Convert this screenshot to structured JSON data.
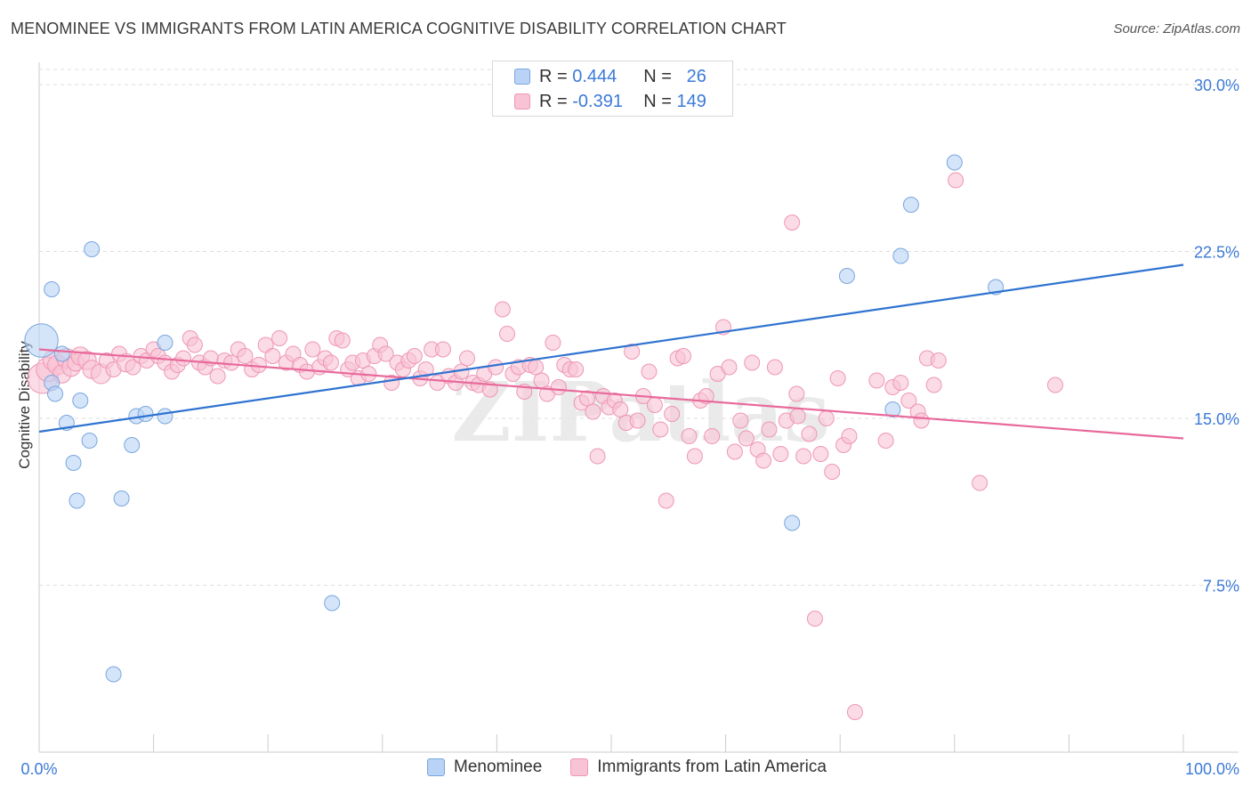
{
  "title": "MENOMINEE VS IMMIGRANTS FROM LATIN AMERICA COGNITIVE DISABILITY CORRELATION CHART",
  "source": "Source: ZipAtlas.com",
  "watermark": "ZIPatlas",
  "legend_stats": [
    {
      "r_label": "R =",
      "r_value": "0.444",
      "n_label": "N =",
      "n_value": "26"
    },
    {
      "r_label": "R =",
      "r_value": "-0.391",
      "n_label": "N =",
      "n_value": "149"
    }
  ],
  "colors": {
    "blue_fill": "#b8d3f5",
    "blue_stroke": "#7aa6de",
    "blue_line": "#2f73d0",
    "pink_fill": "#f8c3d4",
    "pink_stroke": "#ee97b4",
    "pink_line": "#e8699a",
    "tick_label": "#3b7ad8",
    "grid": "#dddddd"
  },
  "chart_data": {
    "type": "scatter",
    "title": "MENOMINEE VS IMMIGRANTS FROM LATIN AMERICA COGNITIVE DISABILITY CORRELATION CHART",
    "xlabel": "",
    "ylabel": "Cognitive Disability",
    "xlim": [
      0,
      100
    ],
    "ylim": [
      0,
      31
    ],
    "x_tick_labels": [
      "0.0%",
      "100.0%"
    ],
    "y_ticks": [
      7.5,
      15.0,
      22.5,
      30.0
    ],
    "y_tick_labels": [
      "7.5%",
      "15.0%",
      "22.5%",
      "30.0%"
    ],
    "grid": true,
    "legend_position": "bottom",
    "series": [
      {
        "name": "Menominee",
        "r": 0.444,
        "n": 26,
        "trend": [
          [
            0,
            14.4
          ],
          [
            100,
            21.9
          ]
        ],
        "points": [
          [
            0.2,
            18.5,
            2.2
          ],
          [
            1.1,
            16.6,
            1
          ],
          [
            1.1,
            20.8,
            1
          ],
          [
            1.4,
            16.1,
            1
          ],
          [
            2.0,
            17.9,
            1
          ],
          [
            2.4,
            14.8,
            1
          ],
          [
            3.0,
            13.0,
            1
          ],
          [
            3.3,
            11.3,
            1
          ],
          [
            3.6,
            15.8,
            1
          ],
          [
            4.4,
            14.0,
            1
          ],
          [
            4.6,
            22.6,
            1
          ],
          [
            7.2,
            11.4,
            1
          ],
          [
            8.1,
            13.8,
            1
          ],
          [
            8.5,
            15.1,
            1
          ],
          [
            9.3,
            15.2,
            1
          ],
          [
            11.0,
            15.1,
            1
          ],
          [
            11.0,
            18.4,
            1
          ],
          [
            25.6,
            6.7,
            1
          ],
          [
            65.8,
            10.3,
            1
          ],
          [
            70.6,
            21.4,
            1
          ],
          [
            74.6,
            15.4,
            1
          ],
          [
            75.3,
            22.3,
            1
          ],
          [
            76.2,
            24.6,
            1
          ],
          [
            80.0,
            26.5,
            1
          ],
          [
            83.6,
            20.9,
            1
          ],
          [
            6.5,
            3.5,
            1
          ]
        ]
      },
      {
        "name": "Immigrants from Latin America",
        "r": -0.391,
        "n": 149,
        "trend": [
          [
            0,
            18.1
          ],
          [
            100,
            14.1
          ]
        ],
        "points": [
          [
            0.3,
            16.8,
            2.0
          ],
          [
            0.8,
            17.2,
            1.6
          ],
          [
            1.2,
            17.6,
            1.3
          ],
          [
            1.6,
            17.4,
            1.3
          ],
          [
            2.0,
            17.0,
            1.2
          ],
          [
            2.4,
            17.7,
            1.3
          ],
          [
            2.8,
            17.3,
            1.2
          ],
          [
            3.2,
            17.5,
            1.1
          ],
          [
            3.6,
            17.8,
            1.2
          ],
          [
            4.2,
            17.6,
            1.2
          ],
          [
            4.6,
            17.2,
            1.2
          ],
          [
            5.4,
            17.0,
            1.3
          ],
          [
            5.9,
            17.6,
            1
          ],
          [
            6.5,
            17.2,
            1
          ],
          [
            7.0,
            17.9,
            1
          ],
          [
            7.6,
            17.5,
            1.2
          ],
          [
            8.2,
            17.3,
            1
          ],
          [
            8.9,
            17.8,
            1
          ],
          [
            9.4,
            17.6,
            1
          ],
          [
            10.0,
            18.1,
            1
          ],
          [
            10.4,
            17.8,
            1
          ],
          [
            11.0,
            17.5,
            1
          ],
          [
            11.6,
            17.1,
            1
          ],
          [
            12.1,
            17.4,
            1
          ],
          [
            12.6,
            17.7,
            1
          ],
          [
            13.2,
            18.6,
            1
          ],
          [
            13.6,
            18.3,
            1
          ],
          [
            14.0,
            17.5,
            1
          ],
          [
            14.5,
            17.3,
            1
          ],
          [
            15.0,
            17.7,
            1
          ],
          [
            15.6,
            16.9,
            1
          ],
          [
            16.2,
            17.6,
            1
          ],
          [
            16.8,
            17.5,
            1
          ],
          [
            17.4,
            18.1,
            1
          ],
          [
            18.0,
            17.8,
            1
          ],
          [
            18.6,
            17.2,
            1
          ],
          [
            19.2,
            17.4,
            1
          ],
          [
            19.8,
            18.3,
            1
          ],
          [
            20.4,
            17.8,
            1
          ],
          [
            21.0,
            18.6,
            1
          ],
          [
            21.6,
            17.5,
            1
          ],
          [
            22.2,
            17.9,
            1
          ],
          [
            22.8,
            17.4,
            1
          ],
          [
            23.4,
            17.1,
            1
          ],
          [
            23.9,
            18.1,
            1
          ],
          [
            24.5,
            17.3,
            1
          ],
          [
            25.0,
            17.7,
            1
          ],
          [
            25.5,
            17.5,
            1
          ],
          [
            26.0,
            18.6,
            1
          ],
          [
            26.5,
            18.5,
            1
          ],
          [
            27.0,
            17.2,
            1
          ],
          [
            27.4,
            17.5,
            1
          ],
          [
            27.9,
            16.8,
            1
          ],
          [
            28.3,
            17.6,
            1
          ],
          [
            28.8,
            17.0,
            1
          ],
          [
            29.3,
            17.8,
            1
          ],
          [
            29.8,
            18.3,
            1
          ],
          [
            30.3,
            17.9,
            1
          ],
          [
            30.8,
            16.6,
            1
          ],
          [
            31.3,
            17.5,
            1
          ],
          [
            31.8,
            17.2,
            1
          ],
          [
            32.3,
            17.6,
            1
          ],
          [
            32.8,
            17.8,
            1
          ],
          [
            33.3,
            16.8,
            1
          ],
          [
            33.8,
            17.2,
            1
          ],
          [
            34.3,
            18.1,
            1
          ],
          [
            34.8,
            16.6,
            1
          ],
          [
            35.3,
            18.1,
            1
          ],
          [
            35.8,
            16.9,
            1
          ],
          [
            36.4,
            16.6,
            1
          ],
          [
            36.9,
            17.1,
            1
          ],
          [
            37.4,
            17.7,
            1
          ],
          [
            37.9,
            16.6,
            1
          ],
          [
            38.4,
            16.5,
            1
          ],
          [
            38.9,
            17.0,
            1
          ],
          [
            39.4,
            16.3,
            1
          ],
          [
            39.9,
            17.3,
            1
          ],
          [
            40.5,
            19.9,
            1
          ],
          [
            40.9,
            18.8,
            1
          ],
          [
            41.4,
            17.0,
            1
          ],
          [
            41.9,
            17.3,
            1
          ],
          [
            42.4,
            16.2,
            1
          ],
          [
            42.9,
            17.4,
            1
          ],
          [
            43.4,
            17.3,
            1
          ],
          [
            43.9,
            16.7,
            1
          ],
          [
            44.4,
            16.1,
            1
          ],
          [
            44.9,
            18.4,
            1
          ],
          [
            45.4,
            16.4,
            1
          ],
          [
            45.9,
            17.4,
            1
          ],
          [
            46.4,
            17.2,
            1
          ],
          [
            46.9,
            17.2,
            1
          ],
          [
            47.4,
            15.7,
            1
          ],
          [
            47.9,
            15.9,
            1
          ],
          [
            48.4,
            15.3,
            1
          ],
          [
            48.8,
            13.3,
            1
          ],
          [
            49.3,
            16.0,
            1
          ],
          [
            49.8,
            15.5,
            1
          ],
          [
            50.3,
            15.8,
            1
          ],
          [
            50.8,
            15.4,
            1
          ],
          [
            51.3,
            14.8,
            1
          ],
          [
            51.8,
            18.0,
            1
          ],
          [
            52.3,
            14.9,
            1
          ],
          [
            52.8,
            16.0,
            1
          ],
          [
            53.3,
            17.1,
            1
          ],
          [
            53.8,
            15.6,
            1
          ],
          [
            54.3,
            14.5,
            1
          ],
          [
            54.8,
            11.3,
            1
          ],
          [
            55.3,
            15.2,
            1
          ],
          [
            55.8,
            17.7,
            1
          ],
          [
            56.3,
            17.8,
            1
          ],
          [
            56.8,
            14.2,
            1
          ],
          [
            57.3,
            13.3,
            1
          ],
          [
            57.8,
            15.8,
            1
          ],
          [
            58.3,
            16.0,
            1
          ],
          [
            58.8,
            14.2,
            1
          ],
          [
            59.3,
            17.0,
            1
          ],
          [
            59.8,
            19.1,
            1
          ],
          [
            60.3,
            17.3,
            1
          ],
          [
            60.8,
            13.5,
            1
          ],
          [
            61.3,
            14.9,
            1
          ],
          [
            61.8,
            14.1,
            1
          ],
          [
            62.3,
            17.5,
            1
          ],
          [
            62.8,
            13.6,
            1
          ],
          [
            63.3,
            13.1,
            1
          ],
          [
            63.8,
            14.5,
            1
          ],
          [
            64.3,
            17.3,
            1
          ],
          [
            64.8,
            13.4,
            1
          ],
          [
            65.3,
            14.9,
            1
          ],
          [
            65.8,
            23.8,
            1
          ],
          [
            66.3,
            15.1,
            1
          ],
          [
            66.8,
            13.3,
            1
          ],
          [
            67.3,
            14.3,
            1
          ],
          [
            67.8,
            6.0,
            1
          ],
          [
            68.3,
            13.4,
            1
          ],
          [
            68.8,
            15.0,
            1
          ],
          [
            69.3,
            12.6,
            1
          ],
          [
            69.8,
            16.8,
            1
          ],
          [
            70.3,
            13.8,
            1
          ],
          [
            70.8,
            14.2,
            1
          ],
          [
            71.3,
            1.8,
            1
          ],
          [
            73.2,
            16.7,
            1
          ],
          [
            74.0,
            14.0,
            1
          ],
          [
            74.6,
            16.4,
            1
          ],
          [
            75.3,
            16.6,
            1
          ],
          [
            76.0,
            15.8,
            1
          ],
          [
            76.8,
            15.3,
            1
          ],
          [
            77.6,
            17.7,
            1
          ],
          [
            78.2,
            16.5,
            1
          ],
          [
            80.1,
            25.7,
            1
          ],
          [
            82.2,
            12.1,
            1
          ],
          [
            78.6,
            17.6,
            1
          ],
          [
            88.8,
            16.5,
            1
          ],
          [
            77.1,
            14.9,
            1
          ],
          [
            66.2,
            16.1,
            1
          ]
        ]
      }
    ]
  },
  "legend_bottom": [
    "Menominee",
    "Immigrants from Latin America"
  ]
}
